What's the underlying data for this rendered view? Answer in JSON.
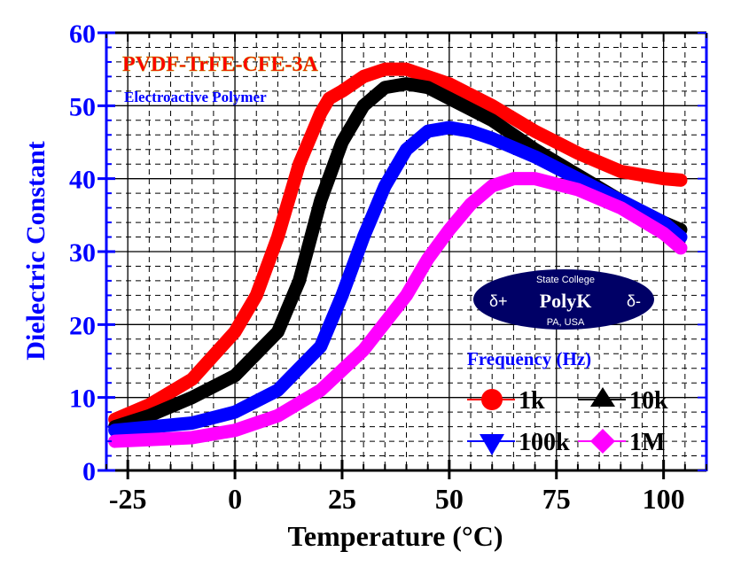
{
  "chart_data": {
    "type": "line",
    "title": "PVDF-TrFE-CFE-3A",
    "subtitle": "Electroactive Polymer",
    "xlabel": "Temperature (°C)",
    "ylabel": "Dielectric Constant",
    "xlim": [
      -30,
      110
    ],
    "ylim": [
      0,
      60
    ],
    "xticks": [
      -25,
      0,
      25,
      50,
      75,
      100
    ],
    "yticks": [
      0,
      10,
      20,
      30,
      40,
      50,
      60
    ],
    "grid": true,
    "legend_title": "Frequency (Hz)",
    "legend_placement": "bottom-right",
    "logo": {
      "top": "State College",
      "name": "PolyK",
      "bottom": "PA, USA",
      "left": "δ+",
      "right": "δ-"
    },
    "colors": {
      "axis_y": "#0000ff",
      "title": "#ff0000",
      "subtitle": "#0000ff",
      "logo_bg": "#000066"
    },
    "series": [
      {
        "name": "1k",
        "color": "#ff0000",
        "marker": "circle",
        "x": [
          -28,
          -20,
          -10,
          0,
          5,
          10,
          15,
          20,
          22,
          25,
          30,
          35,
          40,
          50,
          60,
          70,
          80,
          90,
          100,
          104
        ],
        "y": [
          7,
          9,
          12.5,
          19,
          24,
          32,
          42,
          49,
          51,
          52,
          54,
          55,
          55,
          53,
          50,
          46.5,
          43.5,
          41,
          40,
          39.8
        ]
      },
      {
        "name": "10k",
        "color": "#000000",
        "marker": "triangle-up",
        "x": [
          -28,
          -20,
          -10,
          0,
          10,
          15,
          20,
          25,
          30,
          35,
          40,
          45,
          50,
          60,
          70,
          80,
          90,
          100,
          104
        ],
        "y": [
          6,
          7.5,
          10,
          13,
          19,
          26,
          37,
          45,
          50,
          52.5,
          53,
          52.5,
          51,
          48,
          44,
          40.5,
          37,
          34,
          33
        ]
      },
      {
        "name": "100k",
        "color": "#0000ff",
        "marker": "triangle-down",
        "x": [
          -28,
          -10,
          0,
          10,
          20,
          25,
          30,
          35,
          40,
          45,
          50,
          55,
          60,
          70,
          80,
          90,
          100,
          104
        ],
        "y": [
          5.5,
          6.5,
          8,
          11,
          17,
          24,
          32,
          39,
          44,
          46.5,
          47,
          46.5,
          45.5,
          43,
          40,
          37,
          34,
          32
        ]
      },
      {
        "name": "1M",
        "color": "#ff00ff",
        "marker": "diamond",
        "x": [
          -28,
          -10,
          0,
          10,
          20,
          30,
          40,
          45,
          50,
          55,
          60,
          65,
          70,
          80,
          90,
          100,
          104
        ],
        "y": [
          4,
          4.5,
          5.5,
          7.5,
          11,
          16.5,
          24,
          29,
          33,
          36.5,
          39,
          40,
          40,
          38.5,
          36,
          32.5,
          30.5
        ]
      }
    ]
  }
}
